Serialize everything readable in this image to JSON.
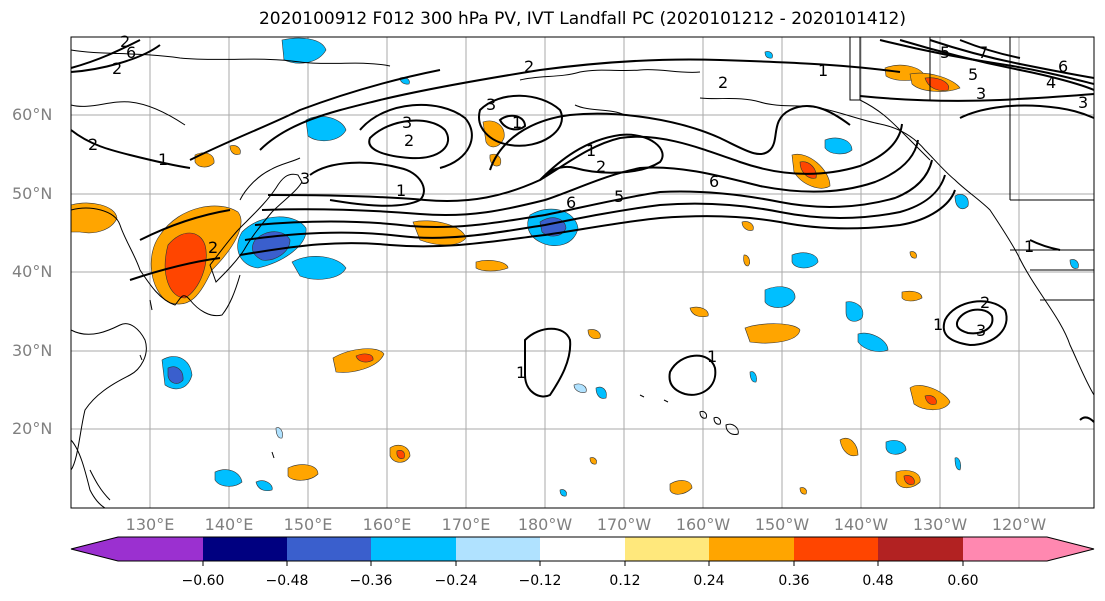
{
  "map": {
    "title": "2020100912 F012 300 hPa PV, IVT Landfall PC (2020101212 - 2020101412)",
    "lat_labels": [
      "60°N",
      "50°N",
      "40°N",
      "30°N",
      "20°N"
    ],
    "lon_labels": [
      "130°E",
      "140°E",
      "150°E",
      "160°E",
      "170°E",
      "180°W",
      "170°W",
      "160°W",
      "150°W",
      "140°W",
      "130°W",
      "120°W"
    ],
    "contour_labels": [
      "2",
      "2",
      "2",
      "1",
      "1",
      "2",
      "3",
      "3",
      "3",
      "2",
      "2",
      "1",
      "1",
      "2",
      "2",
      "1",
      "5",
      "5",
      "6",
      "6",
      "6",
      "7",
      "5",
      "6",
      "4",
      "3",
      "1",
      "1",
      "1",
      "3",
      "3",
      "2",
      "1"
    ],
    "colors": {
      "contour": "#000000",
      "grid": "#aaaaaa",
      "coast": "#000000"
    }
  },
  "colorbar": {
    "tick_labels": [
      "−0.60",
      "−0.48",
      "−0.36",
      "−0.24",
      "−0.12",
      "0.12",
      "0.24",
      "0.36",
      "0.48",
      "0.60"
    ],
    "colors": [
      "#9b30d0",
      "#000080",
      "#3a5fcd",
      "#00bfff",
      "#b0e2ff",
      "#ffffff",
      "#ffe87c",
      "#ffa500",
      "#ff4500",
      "#b22222",
      "#ff88b0"
    ]
  }
}
